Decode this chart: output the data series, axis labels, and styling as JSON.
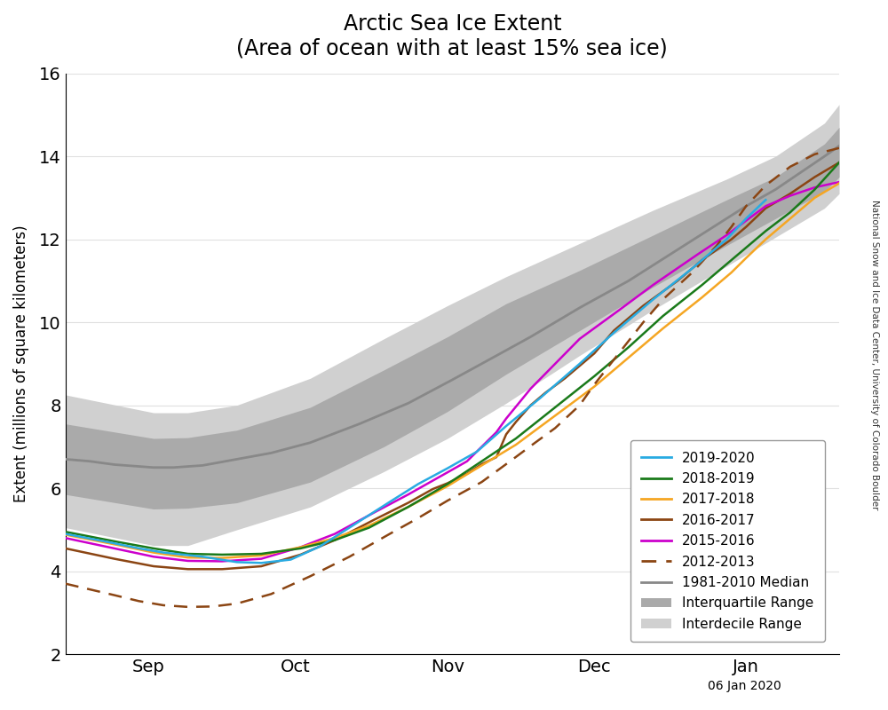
{
  "title_line1": "Arctic Sea Ice Extent",
  "title_line2": "(Area of ocean with at least 15% sea ice)",
  "ylabel": "Extent (millions of square kilometers)",
  "xlabel_date": "06 Jan 2020",
  "watermark": "National Snow and Ice Data Center, University of Colorado Boulder",
  "ylim": [
    2,
    16
  ],
  "yticks": [
    2,
    4,
    6,
    8,
    10,
    12,
    14,
    16
  ],
  "x_tick_labels": [
    "Sep",
    "Oct",
    "Nov",
    "Dec",
    "Jan"
  ],
  "colors": {
    "2019-2020": "#29ABE2",
    "2018-2019": "#1A7A1A",
    "2017-2018": "#F5A623",
    "2016-2017": "#8B4513",
    "2015-2016": "#CC00CC",
    "2012-2013": "#8B4513",
    "median": "#888888",
    "interquartile": "#AAAAAA",
    "interdecile": "#D0D0D0"
  },
  "legend_labels": [
    "2019-2020",
    "2018-2019",
    "2017-2018",
    "2016-2017",
    "2015-2016",
    "2012-2013",
    "1981-2010 Median",
    "Interquartile Range",
    "Interdecile Range"
  ]
}
